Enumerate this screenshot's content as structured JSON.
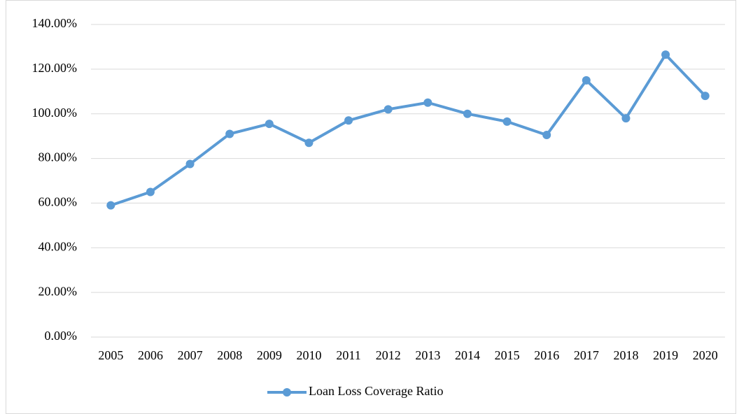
{
  "chart_data": {
    "type": "line",
    "categories": [
      "2005",
      "2006",
      "2007",
      "2008",
      "2009",
      "2010",
      "2011",
      "2012",
      "2013",
      "2014",
      "2015",
      "2016",
      "2017",
      "2018",
      "2019",
      "2020"
    ],
    "series": [
      {
        "name": "Loan Loss Coverage Ratio",
        "color": "#5b9bd5",
        "values": [
          59,
          65,
          77.5,
          91,
          95.5,
          87,
          97,
          102,
          105,
          100,
          96.5,
          90.5,
          115,
          98,
          126.5,
          108
        ]
      }
    ],
    "ylim": [
      0,
      140
    ],
    "yticks": [
      {
        "value": 0,
        "label": "0.00%"
      },
      {
        "value": 20,
        "label": "20.00%"
      },
      {
        "value": 40,
        "label": "40.00%"
      },
      {
        "value": 60,
        "label": "60.00%"
      },
      {
        "value": 80,
        "label": "80.00%"
      },
      {
        "value": 100,
        "label": "100.00%"
      },
      {
        "value": 120,
        "label": "120.00%"
      },
      {
        "value": 140,
        "label": "140.00%"
      }
    ],
    "grid": true,
    "legend": "bottom"
  }
}
